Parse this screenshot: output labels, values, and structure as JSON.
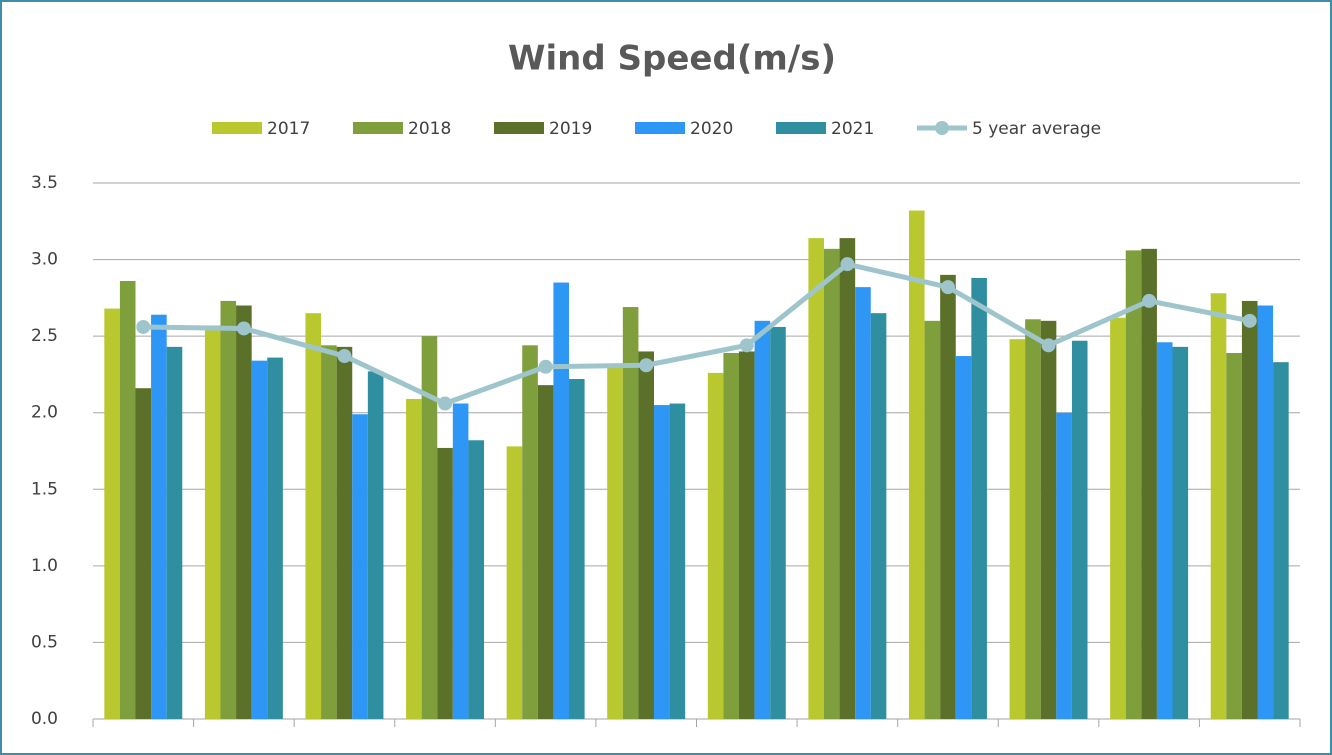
{
  "chart_data": {
    "type": "bar",
    "title": "Wind Speed(m/s)",
    "categories": [
      null,
      null,
      null,
      null,
      null,
      null,
      null,
      null,
      null,
      null,
      null,
      null
    ],
    "series": [
      {
        "name": "2017",
        "type": "bar",
        "color": "#b9c82e",
        "values": [
          2.68,
          2.57,
          2.65,
          2.09,
          1.78,
          2.3,
          2.26,
          3.14,
          3.32,
          2.48,
          2.62,
          2.78
        ]
      },
      {
        "name": "2018",
        "type": "bar",
        "color": "#7f9e3c",
        "values": [
          2.86,
          2.73,
          2.44,
          2.5,
          2.44,
          2.69,
          2.39,
          3.07,
          2.6,
          2.61,
          3.06,
          2.39
        ]
      },
      {
        "name": "2019",
        "type": "bar",
        "color": "#5b7028",
        "values": [
          2.16,
          2.7,
          2.43,
          1.77,
          2.18,
          2.4,
          2.4,
          3.14,
          2.9,
          2.6,
          3.07,
          2.73
        ]
      },
      {
        "name": "2020",
        "type": "bar",
        "color": "#2e96f5",
        "values": [
          2.64,
          2.34,
          1.99,
          2.06,
          2.85,
          2.05,
          2.6,
          2.82,
          2.37,
          2.0,
          2.46,
          2.7
        ]
      },
      {
        "name": "2021",
        "type": "bar",
        "color": "#2f8ea0",
        "values": [
          2.43,
          2.36,
          2.27,
          1.82,
          2.22,
          2.06,
          2.56,
          2.65,
          2.88,
          2.47,
          2.43,
          2.33
        ]
      },
      {
        "name": "5 year average",
        "type": "line",
        "color": "#9ec5cc",
        "values": [
          2.56,
          2.55,
          2.37,
          2.06,
          2.3,
          2.31,
          2.44,
          2.97,
          2.82,
          2.44,
          2.73,
          2.6
        ]
      }
    ],
    "ylim": [
      0,
      3.5
    ],
    "yticks": [
      {
        "value": 0,
        "label": "0.0"
      },
      0.5,
      {
        "value": 1,
        "label": "1.0"
      },
      1.5,
      {
        "value": 2,
        "label": "2.0"
      },
      2.5,
      {
        "value": 3,
        "label": "3.0"
      },
      3.5
    ],
    "grid": true,
    "legend": "top"
  }
}
